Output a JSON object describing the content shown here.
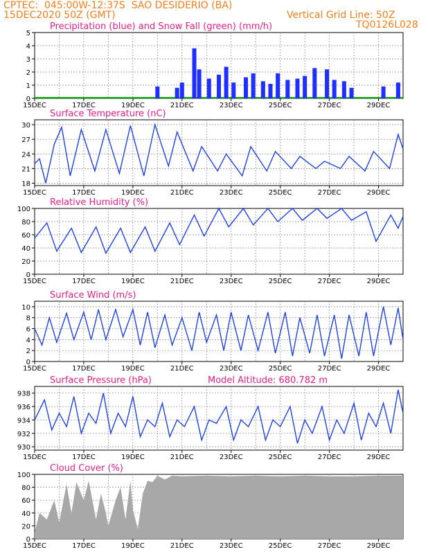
{
  "header": {
    "line1": "CPTEC:  045:00W-12:37S  SAO DESIDERIO (BA)",
    "line2": "15DEC2020 50Z (GMT)",
    "grid_note": "Vertical Grid Line: 50Z",
    "code": "TQ0126L028"
  },
  "colors": {
    "header": "#f08020",
    "title": "#e0208a",
    "line": "#2040e0",
    "precip": "#1f2fff",
    "snow": "#10b010",
    "cloud": "#a8a8a8"
  },
  "x_ticks": [
    "15DEC",
    "17DEC",
    "19DEC",
    "21DEC",
    "23DEC",
    "25DEC",
    "27DEC",
    "29DEC"
  ],
  "chart_data": [
    {
      "type": "bar",
      "title": "Precipitation (blue) and Snow Fall (green) (mm/h)",
      "ylim": [
        0,
        5
      ],
      "yticks": [
        "0",
        "1",
        "2",
        "3",
        "4",
        "5"
      ],
      "x_range_days": [
        15,
        30
      ],
      "series": [
        {
          "name": "Precipitation",
          "values": [
            [
              20.0,
              0.9
            ],
            [
              20.8,
              0.8
            ],
            [
              21.0,
              1.2
            ],
            [
              21.5,
              3.8
            ],
            [
              21.7,
              2.2
            ],
            [
              22.1,
              1.5
            ],
            [
              22.5,
              1.8
            ],
            [
              22.8,
              2.4
            ],
            [
              23.1,
              1.2
            ],
            [
              23.6,
              1.6
            ],
            [
              23.9,
              1.9
            ],
            [
              24.3,
              1.3
            ],
            [
              24.6,
              1.1
            ],
            [
              24.9,
              1.9
            ],
            [
              25.3,
              1.4
            ],
            [
              25.7,
              1.5
            ],
            [
              26.0,
              1.7
            ],
            [
              26.4,
              2.3
            ],
            [
              26.9,
              2.2
            ],
            [
              27.2,
              1.4
            ],
            [
              27.6,
              1.3
            ],
            [
              27.9,
              0.8
            ],
            [
              29.2,
              0.9
            ],
            [
              29.8,
              1.2
            ]
          ]
        }
      ]
    },
    {
      "type": "line",
      "title": "Surface Temperature (nC)",
      "ylim": [
        17.5,
        31
      ],
      "yticks": [
        "18",
        "21",
        "24",
        "27",
        "30"
      ],
      "series": [
        {
          "values": [
            [
              15.0,
              22
            ],
            [
              15.2,
              23
            ],
            [
              15.45,
              18
            ],
            [
              15.8,
              26
            ],
            [
              16.1,
              29.5
            ],
            [
              16.45,
              19.5
            ],
            [
              16.9,
              29
            ],
            [
              17.45,
              20.5
            ],
            [
              17.9,
              29
            ],
            [
              18.45,
              20
            ],
            [
              18.9,
              29.8
            ],
            [
              19.45,
              19.5
            ],
            [
              19.9,
              30
            ],
            [
              20.45,
              21.5
            ],
            [
              20.8,
              28.5
            ],
            [
              21.45,
              20.5
            ],
            [
              21.8,
              25.5
            ],
            [
              22.45,
              20.5
            ],
            [
              22.8,
              24
            ],
            [
              23.45,
              19.5
            ],
            [
              23.8,
              25.5
            ],
            [
              24.45,
              20.5
            ],
            [
              24.8,
              24.5
            ],
            [
              25.45,
              21
            ],
            [
              25.8,
              23.5
            ],
            [
              26.45,
              21
            ],
            [
              26.8,
              22.5
            ],
            [
              27.45,
              21
            ],
            [
              27.8,
              23.5
            ],
            [
              28.45,
              20.5
            ],
            [
              28.8,
              24.5
            ],
            [
              29.45,
              21
            ],
            [
              29.8,
              28
            ],
            [
              30.0,
              25
            ]
          ]
        }
      ]
    },
    {
      "type": "line",
      "title": "Relative Humidity (%)",
      "ylim": [
        0,
        100
      ],
      "yticks": [
        "0",
        "20",
        "40",
        "60",
        "80",
        "100"
      ],
      "series": [
        {
          "values": [
            [
              15.0,
              55
            ],
            [
              15.5,
              78
            ],
            [
              15.9,
              35
            ],
            [
              16.5,
              70
            ],
            [
              16.9,
              33
            ],
            [
              17.5,
              72
            ],
            [
              17.9,
              32
            ],
            [
              18.5,
              70
            ],
            [
              18.9,
              33
            ],
            [
              19.5,
              72
            ],
            [
              19.9,
              35
            ],
            [
              20.5,
              78
            ],
            [
              20.9,
              45
            ],
            [
              21.5,
              90
            ],
            [
              21.9,
              58
            ],
            [
              22.5,
              100
            ],
            [
              22.9,
              72
            ],
            [
              23.5,
              100
            ],
            [
              23.9,
              75
            ],
            [
              24.5,
              100
            ],
            [
              24.9,
              80
            ],
            [
              25.5,
              100
            ],
            [
              25.9,
              82
            ],
            [
              26.5,
              100
            ],
            [
              26.9,
              85
            ],
            [
              27.5,
              100
            ],
            [
              27.9,
              82
            ],
            [
              28.5,
              95
            ],
            [
              28.9,
              50
            ],
            [
              29.5,
              90
            ],
            [
              29.8,
              70
            ],
            [
              30.0,
              88
            ]
          ]
        }
      ]
    },
    {
      "type": "line",
      "title": "Surface Wind (m/s)",
      "ylim": [
        0,
        11
      ],
      "yticks": [
        "0",
        "2",
        "4",
        "6",
        "8",
        "10"
      ],
      "series": [
        {
          "values": [
            [
              15.0,
              6
            ],
            [
              15.3,
              3
            ],
            [
              15.6,
              8
            ],
            [
              15.9,
              3.5
            ],
            [
              16.3,
              8.8
            ],
            [
              16.6,
              4
            ],
            [
              17.0,
              9
            ],
            [
              17.3,
              4
            ],
            [
              17.6,
              9.5
            ],
            [
              17.9,
              4
            ],
            [
              18.3,
              9.5
            ],
            [
              18.6,
              4.5
            ],
            [
              19.0,
              9.5
            ],
            [
              19.3,
              3
            ],
            [
              19.6,
              9
            ],
            [
              19.9,
              2.5
            ],
            [
              20.3,
              8.5
            ],
            [
              20.6,
              3
            ],
            [
              21.0,
              8
            ],
            [
              21.4,
              2
            ],
            [
              21.7,
              9
            ],
            [
              22.0,
              3.5
            ],
            [
              22.4,
              8.5
            ],
            [
              22.7,
              2
            ],
            [
              23.0,
              9
            ],
            [
              23.4,
              2
            ],
            [
              23.7,
              8.5
            ],
            [
              24.1,
              2
            ],
            [
              24.5,
              9
            ],
            [
              24.8,
              1.5
            ],
            [
              25.2,
              9
            ],
            [
              25.5,
              1
            ],
            [
              25.8,
              8
            ],
            [
              26.2,
              1.5
            ],
            [
              26.5,
              8.5
            ],
            [
              26.8,
              1
            ],
            [
              27.2,
              8.5
            ],
            [
              27.5,
              0.5
            ],
            [
              27.8,
              8.5
            ],
            [
              28.2,
              1
            ],
            [
              28.5,
              9
            ],
            [
              28.8,
              1
            ],
            [
              29.2,
              10
            ],
            [
              29.5,
              3
            ],
            [
              29.8,
              9.8
            ],
            [
              30.0,
              4
            ]
          ]
        }
      ]
    },
    {
      "type": "line",
      "title": "Surface Pressure (hPa)",
      "annotation": "Model Altitude: 680.782 m",
      "ylim": [
        929.5,
        939
      ],
      "yticks": [
        "930",
        "932",
        "934",
        "936",
        "938"
      ],
      "series": [
        {
          "values": [
            [
              15.0,
              934
            ],
            [
              15.4,
              937
            ],
            [
              15.7,
              932.5
            ],
            [
              16.0,
              935
            ],
            [
              16.3,
              933
            ],
            [
              16.6,
              937.5
            ],
            [
              16.9,
              932
            ],
            [
              17.2,
              935
            ],
            [
              17.5,
              933.5
            ],
            [
              17.8,
              938
            ],
            [
              18.1,
              932
            ],
            [
              18.4,
              935
            ],
            [
              18.7,
              933
            ],
            [
              19.0,
              937.5
            ],
            [
              19.3,
              931.5
            ],
            [
              19.6,
              934
            ],
            [
              19.9,
              933
            ],
            [
              20.2,
              936.5
            ],
            [
              20.5,
              931.5
            ],
            [
              20.8,
              934
            ],
            [
              21.1,
              933
            ],
            [
              21.5,
              936
            ],
            [
              21.8,
              931
            ],
            [
              22.1,
              934
            ],
            [
              22.4,
              933.5
            ],
            [
              22.8,
              936
            ],
            [
              23.1,
              931
            ],
            [
              23.4,
              934
            ],
            [
              23.7,
              933
            ],
            [
              24.1,
              936
            ],
            [
              24.4,
              931
            ],
            [
              24.7,
              934
            ],
            [
              25.0,
              933
            ],
            [
              25.4,
              936
            ],
            [
              25.7,
              930.5
            ],
            [
              26.0,
              934
            ],
            [
              26.3,
              932
            ],
            [
              26.7,
              936
            ],
            [
              27.0,
              931
            ],
            [
              27.3,
              934
            ],
            [
              27.6,
              932
            ],
            [
              28.0,
              936.5
            ],
            [
              28.3,
              931
            ],
            [
              28.6,
              935
            ],
            [
              28.9,
              933
            ],
            [
              29.2,
              936.5
            ],
            [
              29.5,
              932
            ],
            [
              29.8,
              938.5
            ],
            [
              30.0,
              935
            ]
          ]
        }
      ]
    },
    {
      "type": "area",
      "title": "Cloud Cover (%)",
      "ylim": [
        0,
        100
      ],
      "yticks": [
        "0",
        "20",
        "40",
        "60",
        "80",
        "100"
      ],
      "series": [
        {
          "values": [
            [
              15.0,
              10
            ],
            [
              15.2,
              40
            ],
            [
              15.5,
              30
            ],
            [
              15.8,
              60
            ],
            [
              16.0,
              25
            ],
            [
              16.3,
              85
            ],
            [
              16.5,
              40
            ],
            [
              16.7,
              88
            ],
            [
              17.0,
              60
            ],
            [
              17.2,
              90
            ],
            [
              17.5,
              30
            ],
            [
              17.7,
              70
            ],
            [
              17.9,
              40
            ],
            [
              18.0,
              20
            ],
            [
              18.3,
              60
            ],
            [
              18.5,
              80
            ],
            [
              18.7,
              30
            ],
            [
              18.9,
              90
            ],
            [
              19.0,
              45
            ],
            [
              19.2,
              15
            ],
            [
              19.4,
              70
            ],
            [
              19.6,
              90
            ],
            [
              19.8,
              88
            ],
            [
              20.0,
              98
            ],
            [
              20.3,
              92
            ],
            [
              20.6,
              98
            ],
            [
              21.0,
              97
            ],
            [
              22.0,
              98
            ],
            [
              23.0,
              97
            ],
            [
              24.0,
              98
            ],
            [
              25.0,
              97
            ],
            [
              26.0,
              98
            ],
            [
              27.0,
              97
            ],
            [
              28.0,
              97
            ],
            [
              29.0,
              98
            ],
            [
              30.0,
              98
            ]
          ]
        }
      ]
    }
  ]
}
